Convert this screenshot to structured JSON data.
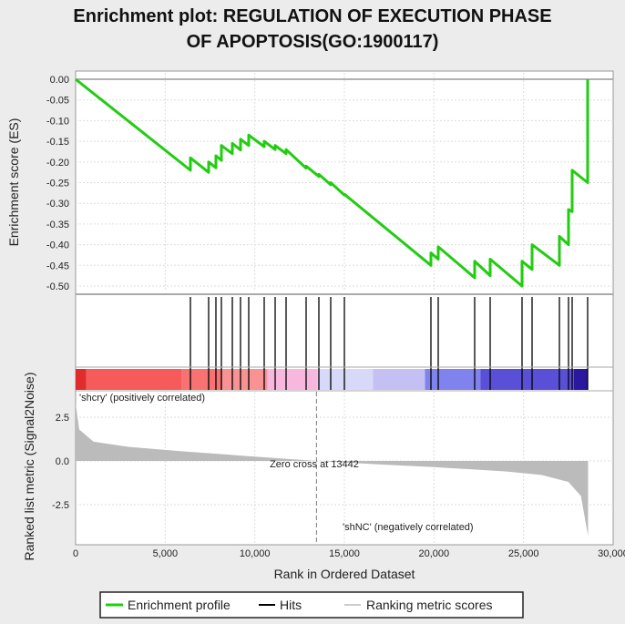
{
  "chart_data": {
    "type": "line",
    "title_line1": "Enrichment plot: REGULATION OF EXECUTION PHASE",
    "title_line2": "OF APOPTOSIS(GO:1900117)",
    "xlabel": "Rank in Ordered Dataset",
    "xlim": [
      0,
      30000
    ],
    "xticks": [
      0,
      5000,
      10000,
      15000,
      20000,
      25000,
      30000
    ],
    "xtick_labels": [
      "0",
      "5,000",
      "10,000",
      "15,000",
      "20,000",
      "25,000",
      "30,000"
    ],
    "es_panel": {
      "ylabel": "Enrichment score (ES)",
      "ylim": [
        -0.52,
        0.0
      ],
      "yticks": [
        0.0,
        -0.05,
        -0.1,
        -0.15,
        -0.2,
        -0.25,
        -0.3,
        -0.35,
        -0.4,
        -0.45,
        -0.5
      ],
      "ytick_labels": [
        "0.00",
        "-0.05",
        "-0.10",
        "-0.15",
        "-0.20",
        "-0.25",
        "-0.30",
        "-0.35",
        "-0.40",
        "-0.45",
        "-0.50"
      ],
      "color": "#22cc11",
      "points": [
        [
          0,
          0
        ],
        [
          6407,
          -0.22
        ],
        [
          6407,
          -0.19
        ],
        [
          7424,
          -0.225
        ],
        [
          7424,
          -0.2
        ],
        [
          7830,
          -0.214
        ],
        [
          7830,
          -0.185
        ],
        [
          8136,
          -0.196
        ],
        [
          8136,
          -0.16
        ],
        [
          8746,
          -0.18
        ],
        [
          8746,
          -0.155
        ],
        [
          9203,
          -0.171
        ],
        [
          9203,
          -0.145
        ],
        [
          9661,
          -0.16
        ],
        [
          9661,
          -0.135
        ],
        [
          10525,
          -0.163
        ],
        [
          10525,
          -0.15
        ],
        [
          11136,
          -0.17
        ],
        [
          11136,
          -0.16
        ],
        [
          11746,
          -0.18
        ],
        [
          11746,
          -0.17
        ],
        [
          12864,
          -0.215
        ],
        [
          12864,
          -0.21
        ],
        [
          13576,
          -0.235
        ],
        [
          13576,
          -0.23
        ],
        [
          14237,
          -0.255
        ],
        [
          14237,
          -0.25
        ],
        [
          15000,
          -0.28
        ],
        [
          15000,
          -0.278
        ],
        [
          19830,
          -0.45
        ],
        [
          19830,
          -0.42
        ],
        [
          20237,
          -0.435
        ],
        [
          20237,
          -0.405
        ],
        [
          22271,
          -0.48
        ],
        [
          22271,
          -0.44
        ],
        [
          23136,
          -0.475
        ],
        [
          23136,
          -0.435
        ],
        [
          24915,
          -0.5
        ],
        [
          24915,
          -0.44
        ],
        [
          25475,
          -0.46
        ],
        [
          25475,
          -0.4
        ],
        [
          27000,
          -0.45
        ],
        [
          27000,
          -0.38
        ],
        [
          27508,
          -0.4
        ],
        [
          27508,
          -0.315
        ],
        [
          27712,
          -0.32
        ],
        [
          27712,
          -0.22
        ],
        [
          28576,
          -0.25
        ],
        [
          28576,
          0.0
        ]
      ]
    },
    "hits": [
      6407,
      7424,
      7830,
      8136,
      8746,
      9203,
      9661,
      10525,
      11136,
      11746,
      12864,
      13576,
      14237,
      15000,
      19830,
      20237,
      22271,
      23136,
      24915,
      25475,
      27000,
      27508,
      27712,
      28576
    ],
    "color_bar": [
      {
        "from": 0,
        "to": 600,
        "color": "#e02c2c"
      },
      {
        "from": 600,
        "to": 5900,
        "color": "#f65a5a"
      },
      {
        "from": 5900,
        "to": 8200,
        "color": "#f87272"
      },
      {
        "from": 8200,
        "to": 10700,
        "color": "#f99292"
      },
      {
        "from": 10700,
        "to": 13500,
        "color": "#f8b8de"
      },
      {
        "from": 13500,
        "to": 16600,
        "color": "#d8d8f8"
      },
      {
        "from": 16600,
        "to": 19500,
        "color": "#c4c0f4"
      },
      {
        "from": 19500,
        "to": 22600,
        "color": "#8082ee"
      },
      {
        "from": 22600,
        "to": 27800,
        "color": "#5a50d8"
      },
      {
        "from": 27800,
        "to": 28600,
        "color": "#2a189e"
      }
    ],
    "metric_panel": {
      "ylabel": "Ranked list metric (Signal2Noise)",
      "ylim": [
        -4.3,
        3.4
      ],
      "yticks": [
        2.5,
        0.0,
        -2.5
      ],
      "ytick_labels": [
        "2.5",
        "0.0",
        "-2.5"
      ],
      "color": "#bbbbbb",
      "points": [
        [
          0,
          3.3
        ],
        [
          200,
          1.8
        ],
        [
          1000,
          1.1
        ],
        [
          3000,
          0.8
        ],
        [
          6000,
          0.55
        ],
        [
          10000,
          0.25
        ],
        [
          13442,
          0
        ],
        [
          17000,
          -0.2
        ],
        [
          20000,
          -0.35
        ],
        [
          24000,
          -0.6
        ],
        [
          26000,
          -0.8
        ],
        [
          27500,
          -1.2
        ],
        [
          28200,
          -2.0
        ],
        [
          28600,
          -4.3
        ]
      ],
      "zero_cross": 13442,
      "zero_cross_label": "Zero cross at 13442",
      "pos_label": "'shcry' (positively correlated)",
      "pos_color": "#ee2222",
      "neg_label": "'shNC' (negatively correlated)",
      "neg_color": "#2222dd"
    },
    "legend": {
      "placement": "bottom",
      "entries": [
        {
          "label": "Enrichment profile",
          "color": "#22cc11"
        },
        {
          "label": "Hits",
          "color": "#000000"
        },
        {
          "label": "Ranking metric scores",
          "color": "#cccccc"
        }
      ]
    }
  }
}
